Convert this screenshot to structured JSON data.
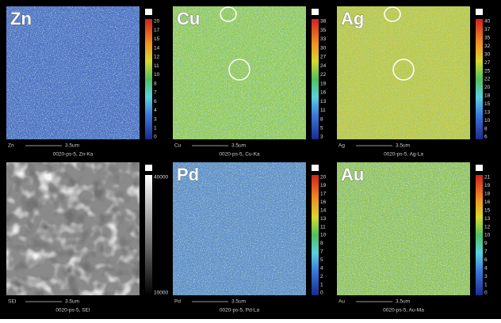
{
  "panels": [
    {
      "label": "Zn",
      "scale_label": "Zn",
      "scale_bar": "3.5um",
      "caption": "0020-ps-5, Zn-Ka",
      "colorbar_ticks": [
        20,
        17,
        15,
        14,
        12,
        11,
        10,
        8,
        7,
        6,
        4,
        3,
        1,
        0
      ]
    },
    {
      "label": "Cu",
      "scale_label": "Cu",
      "scale_bar": "3.5um",
      "caption": "0020-ps-5, Cu-Ka",
      "colorbar_ticks": [
        38,
        35,
        33,
        30,
        27,
        24,
        22,
        19,
        16,
        13,
        11,
        8,
        5,
        3
      ]
    },
    {
      "label": "Ag",
      "scale_label": "Ag",
      "scale_bar": "3.5um",
      "caption": "0020-ps-5, Ag-La",
      "colorbar_ticks": [
        40,
        37,
        35,
        32,
        30,
        27,
        25,
        22,
        20,
        18,
        15,
        13,
        10,
        8,
        6
      ]
    },
    {
      "scale_label": "SEI",
      "scale_bar": "3.5um",
      "caption": "0020-ps-5, SEI",
      "colorbar_ticks": [
        40000,
        10000
      ]
    },
    {
      "label": "Pd",
      "scale_label": "Pd",
      "scale_bar": "3.5um",
      "caption": "0020-ps-5, Pd-La",
      "colorbar_ticks": [
        20,
        19,
        17,
        16,
        14,
        13,
        11,
        10,
        8,
        7,
        5,
        4,
        2,
        1,
        0
      ]
    },
    {
      "label": "Au",
      "scale_label": "Au",
      "scale_bar": "3.5um",
      "caption": "0020-ps-5, Au-Ma",
      "colorbar_ticks": [
        21,
        19,
        18,
        16,
        15,
        13,
        12,
        10,
        9,
        7,
        6,
        4,
        3,
        1,
        0
      ]
    }
  ]
}
